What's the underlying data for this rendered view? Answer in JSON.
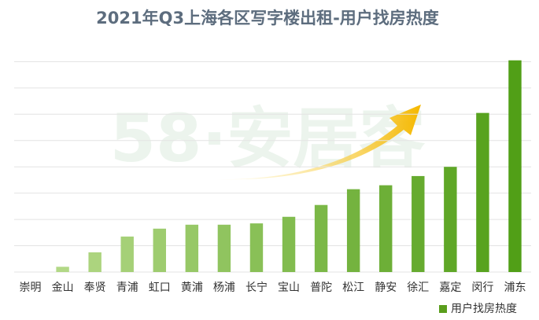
{
  "chart_data": {
    "type": "bar",
    "title": "2021年Q3上海各区写字楼出租-用户找房热度",
    "watermark": "58·安居客",
    "categories": [
      "崇明",
      "金山",
      "奉贤",
      "青浦",
      "虹口",
      "黄浦",
      "杨浦",
      "长宁",
      "宝山",
      "普陀",
      "松江",
      "静安",
      "徐汇",
      "嘉定",
      "闵行",
      "浦东"
    ],
    "series": [
      {
        "name": "用户找房热度",
        "color": "#5a9e1c",
        "values": [
          0,
          0.2,
          0.75,
          1.35,
          1.65,
          1.8,
          1.8,
          1.85,
          2.1,
          2.55,
          3.15,
          3.3,
          3.65,
          4.0,
          6.05,
          8.05
        ],
        "colors": [
          "#b8db8e",
          "#b2d886",
          "#acd47e",
          "#a5d077",
          "#9ecc6f",
          "#97c867",
          "#90c45f",
          "#89c057",
          "#82bc4f",
          "#7bb847",
          "#74b33f",
          "#6daf37",
          "#66ab2f",
          "#5fa727",
          "#58a31f",
          "#519f17"
        ]
      }
    ],
    "ylim": [
      0,
      8.7
    ],
    "yticks": [
      0,
      1,
      2,
      3,
      4,
      5,
      6,
      7,
      8
    ],
    "grid": true,
    "legend": "bottom-right"
  }
}
